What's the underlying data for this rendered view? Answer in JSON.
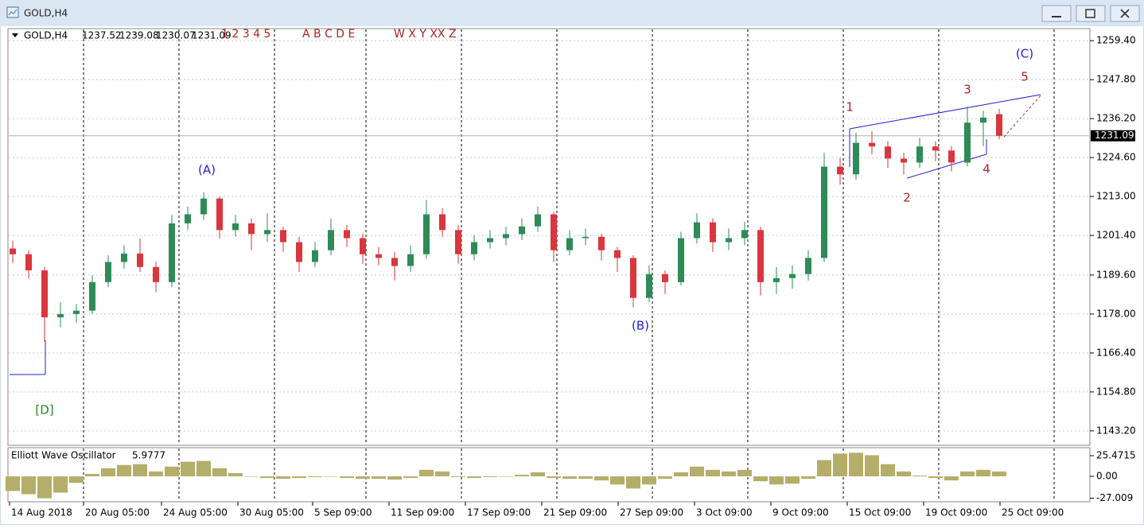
{
  "window_title": "GOLD,H4",
  "toolbar_labels": [
    "1 2 3 4 5",
    "A B C D E",
    "W X Y XX Z"
  ],
  "chart_data": {
    "type": "candlestick",
    "symbol": "GOLD,H4",
    "up_color": "#2e8b57",
    "down_color": "#d9363e",
    "candles": [
      [
        1197.5,
        1199.8,
        1193.2,
        1195.8
      ],
      [
        1195.8,
        1197.0,
        1188.5,
        1191.0
      ],
      [
        1191.0,
        1192.0,
        1169.8,
        1177.0
      ],
      [
        1177.0,
        1181.5,
        1174.0,
        1178.0
      ],
      [
        1178.0,
        1181.0,
        1175.5,
        1179.0
      ],
      [
        1179.0,
        1189.5,
        1178.0,
        1187.5
      ],
      [
        1187.5,
        1195.5,
        1186.0,
        1193.5
      ],
      [
        1193.5,
        1198.5,
        1191.5,
        1196.0
      ],
      [
        1196.0,
        1200.5,
        1190.5,
        1192.0
      ],
      [
        1192.0,
        1193.5,
        1184.5,
        1187.5
      ],
      [
        1187.5,
        1207.5,
        1186.0,
        1205.0
      ],
      [
        1205.0,
        1210.0,
        1203.0,
        1207.7
      ],
      [
        1207.7,
        1214.3,
        1206.0,
        1212.4
      ],
      [
        1212.4,
        1213.0,
        1200.5,
        1203.0
      ],
      [
        1203.0,
        1207.5,
        1201.0,
        1205.0
      ],
      [
        1205.0,
        1206.5,
        1197.0,
        1201.8
      ],
      [
        1201.8,
        1208.0,
        1199.5,
        1203.0
      ],
      [
        1203.0,
        1204.0,
        1196.5,
        1199.4
      ],
      [
        1199.4,
        1201.0,
        1190.5,
        1193.5
      ],
      [
        1193.5,
        1199.5,
        1192.0,
        1197.0
      ],
      [
        1197.0,
        1206.5,
        1195.5,
        1203.0
      ],
      [
        1203.0,
        1204.5,
        1198.0,
        1200.6
      ],
      [
        1200.6,
        1202.0,
        1193.0,
        1195.8
      ],
      [
        1195.8,
        1198.0,
        1192.5,
        1194.7
      ],
      [
        1194.7,
        1196.5,
        1188.0,
        1192.3
      ],
      [
        1192.3,
        1198.5,
        1190.5,
        1195.8
      ],
      [
        1195.8,
        1212.0,
        1194.5,
        1207.7
      ],
      [
        1207.7,
        1209.5,
        1201.0,
        1203.0
      ],
      [
        1203.0,
        1204.5,
        1193.0,
        1195.8
      ],
      [
        1195.8,
        1201.5,
        1194.0,
        1199.4
      ],
      [
        1199.4,
        1203.0,
        1197.5,
        1200.6
      ],
      [
        1200.6,
        1204.0,
        1198.5,
        1201.8
      ],
      [
        1201.8,
        1206.5,
        1200.0,
        1204.1
      ],
      [
        1204.1,
        1210.0,
        1202.5,
        1207.7
      ],
      [
        1207.7,
        1208.5,
        1193.5,
        1197.0
      ],
      [
        1197.0,
        1203.0,
        1195.5,
        1200.6
      ],
      [
        1200.6,
        1203.5,
        1198.5,
        1201.0
      ],
      [
        1201.0,
        1202.0,
        1194.0,
        1197.0
      ],
      [
        1197.0,
        1198.0,
        1190.5,
        1194.7
      ],
      [
        1194.7,
        1195.5,
        1180.0,
        1182.8
      ],
      [
        1182.8,
        1192.5,
        1181.5,
        1189.9
      ],
      [
        1189.9,
        1191.0,
        1184.0,
        1187.5
      ],
      [
        1187.5,
        1202.5,
        1186.5,
        1200.6
      ],
      [
        1200.6,
        1208.0,
        1199.0,
        1205.3
      ],
      [
        1205.3,
        1206.5,
        1196.5,
        1199.4
      ],
      [
        1199.4,
        1203.5,
        1197.0,
        1200.6
      ],
      [
        1200.6,
        1205.5,
        1198.5,
        1203.0
      ],
      [
        1203.0,
        1204.0,
        1183.5,
        1187.5
      ],
      [
        1187.5,
        1192.0,
        1184.0,
        1188.7
      ],
      [
        1188.7,
        1192.5,
        1185.5,
        1189.9
      ],
      [
        1189.9,
        1197.0,
        1188.0,
        1194.7
      ],
      [
        1194.7,
        1226.0,
        1193.5,
        1221.9
      ],
      [
        1221.9,
        1224.5,
        1216.5,
        1219.6
      ],
      [
        1219.6,
        1232.0,
        1218.0,
        1229.0
      ],
      [
        1229.0,
        1232.5,
        1225.5,
        1227.9
      ],
      [
        1227.9,
        1229.5,
        1221.5,
        1224.3
      ],
      [
        1224.3,
        1226.0,
        1219.5,
        1223.1
      ],
      [
        1223.1,
        1230.5,
        1221.5,
        1227.9
      ],
      [
        1227.9,
        1229.5,
        1223.5,
        1226.7
      ],
      [
        1226.7,
        1228.0,
        1220.5,
        1223.1
      ],
      [
        1223.1,
        1239.8,
        1222.0,
        1235.0
      ],
      [
        1235.0,
        1238.5,
        1228.0,
        1236.5
      ],
      [
        1237.52,
        1239.08,
        1230.07,
        1231.09
      ]
    ],
    "xlim": [
      -0.2,
      67.5
    ],
    "ylim": [
      1138.9,
      1263.0
    ],
    "grid": true,
    "yticks": [
      {
        "value": 1259.4,
        "label": "1259.40"
      },
      {
        "value": 1247.8,
        "label": "1247.80"
      },
      {
        "value": 1236.2,
        "label": "1236.20"
      },
      {
        "value": 1224.6,
        "label": "1224.60"
      },
      {
        "value": 1213.0,
        "label": "1213.00"
      },
      {
        "value": 1201.4,
        "label": "1201.40"
      },
      {
        "value": 1189.6,
        "label": "1189.60"
      },
      {
        "value": 1178.0,
        "label": "1178.00"
      },
      {
        "value": 1166.4,
        "label": "1166.40"
      },
      {
        "value": 1154.8,
        "label": "1154.80"
      },
      {
        "value": 1143.2,
        "label": "1143.20"
      }
    ],
    "xticks": [
      {
        "value": -0.2,
        "label": "14 Aug 2018"
      },
      {
        "value": 4.45,
        "label": "20 Aug 05:00"
      },
      {
        "value": 9.35,
        "label": "24 Aug 05:00"
      },
      {
        "value": 14.15,
        "label": "30 Aug 05:00"
      },
      {
        "value": 18.85,
        "label": "5 Sep 09:00"
      },
      {
        "value": 23.65,
        "label": "11 Sep 09:00"
      },
      {
        "value": 28.45,
        "label": "17 Sep 09:00"
      },
      {
        "value": 33.25,
        "label": "21 Sep 09:00"
      },
      {
        "value": 38.05,
        "label": "27 Sep 09:00"
      },
      {
        "value": 42.85,
        "label": "3 Oct 09:00"
      },
      {
        "value": 47.65,
        "label": "9 Oct 09:00"
      },
      {
        "value": 52.45,
        "label": "15 Oct 09:00"
      },
      {
        "value": 57.25,
        "label": "19 Oct 09:00"
      },
      {
        "value": 62.05,
        "label": "25 Oct 09:00"
      }
    ],
    "period_separators": [
      4.45,
      10.45,
      16.45,
      22.2,
      28.2,
      34.2,
      40.2,
      46.2,
      52.2,
      58.2,
      65.45
    ],
    "annotations": [
      {
        "text": "(A)",
        "color": "#2020d0"
      },
      {
        "text": "(B)",
        "color": "#2020d0"
      },
      {
        "text": "(C)",
        "color": "#2020d0"
      },
      {
        "text": "[D]",
        "color": "#228b22"
      },
      {
        "text": "1",
        "color": "#b22222"
      },
      {
        "text": "2",
        "color": "#b22222"
      },
      {
        "text": "3",
        "color": "#b22222"
      },
      {
        "text": "4",
        "color": "#b22222"
      },
      {
        "text": "5",
        "color": "#b22222"
      }
    ],
    "oscillator": {
      "title": "Elliott Wave Oscillator",
      "last": 5.9777,
      "color": "#b5ae6a",
      "values": [
        -18,
        -22,
        -27,
        -20,
        -8,
        3,
        10,
        14,
        15,
        6,
        12,
        18,
        19,
        10,
        4,
        0,
        -2,
        -3,
        -2,
        -1,
        0,
        -2,
        -3,
        -3,
        -4,
        -2,
        8,
        6,
        -1,
        -2,
        -1,
        0,
        2,
        5,
        -2,
        -3,
        -3,
        -5,
        -10,
        -15,
        -10,
        -3,
        5,
        12,
        8,
        6,
        8,
        -6,
        -10,
        -9,
        -3,
        20,
        28,
        29,
        26,
        15,
        6,
        1,
        -2,
        -5,
        6,
        8,
        6
      ],
      "ylim": [
        -31.3,
        35.3
      ],
      "yticks": [
        25.4715,
        {
          "value": 0,
          "label": "0.00"
        },
        -27.009
      ]
    }
  }
}
